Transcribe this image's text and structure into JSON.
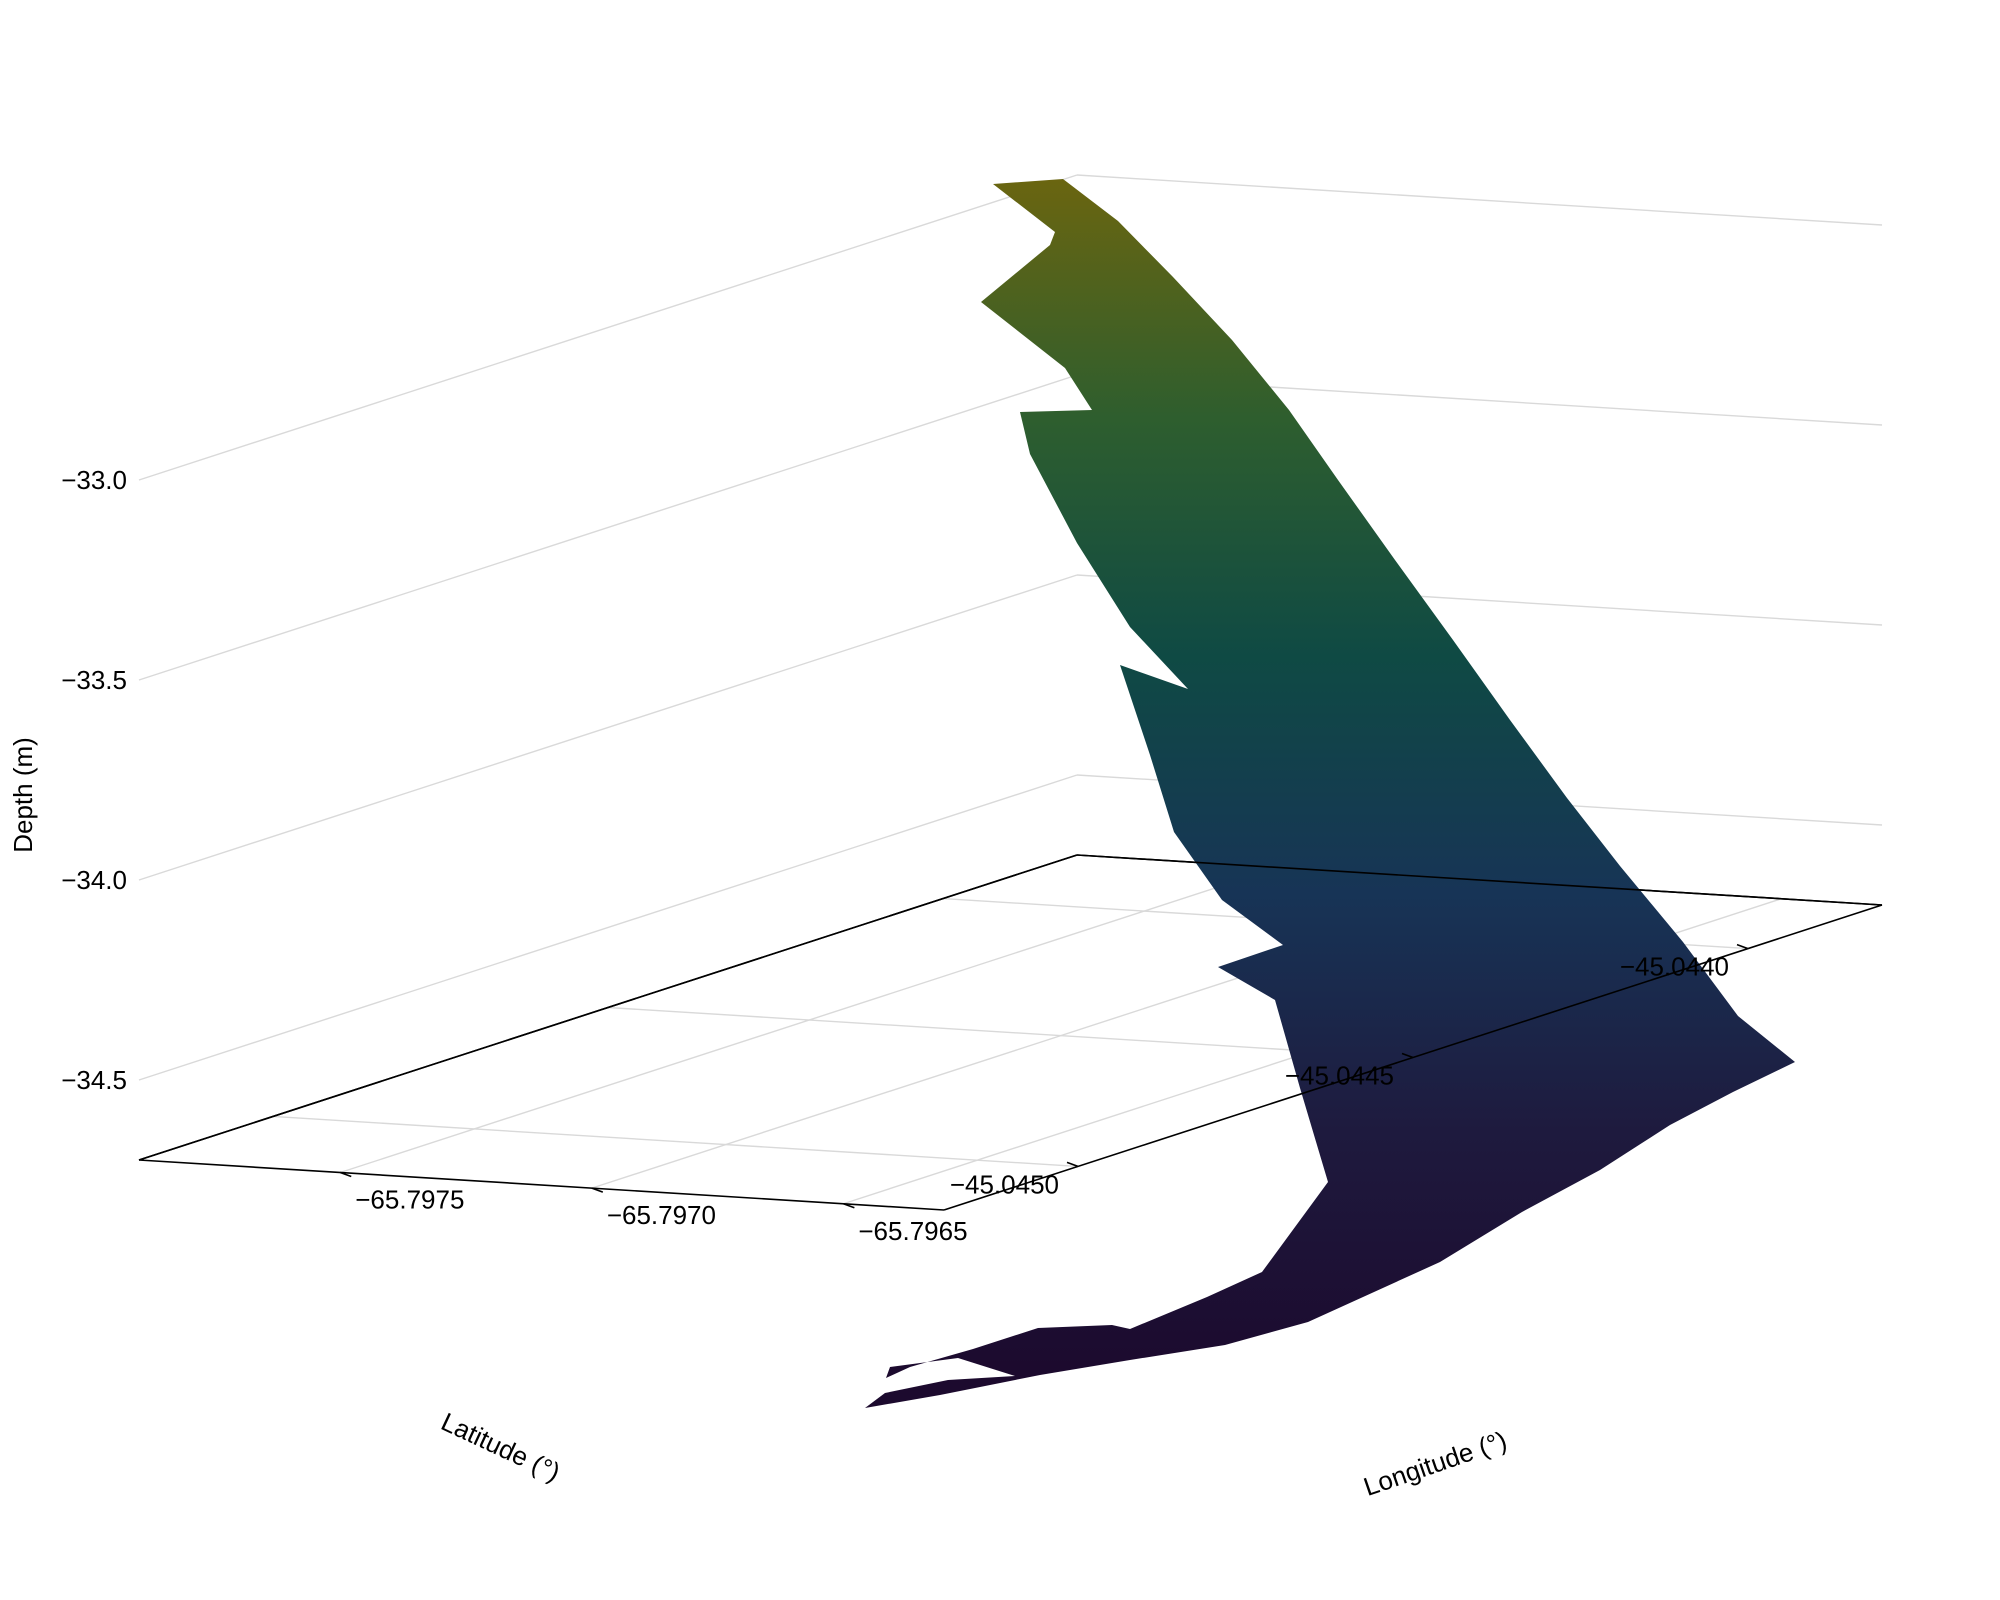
{
  "chart_data": {
    "type": "surface3d",
    "title": "",
    "xlabel": "Longitude (°)",
    "ylabel": "Latitude (°)",
    "zlabel": "Depth (m)",
    "x_ticks": [
      {
        "value": -65.7975,
        "label": "−65.7975"
      },
      {
        "value": -65.797,
        "label": "−65.7970"
      },
      {
        "value": -65.7965,
        "label": "−65.7965"
      }
    ],
    "y_ticks": [
      {
        "value": -45.045,
        "label": "−45.0450"
      },
      {
        "value": -45.0445,
        "label": "−45.0445"
      },
      {
        "value": -45.044,
        "label": "−45.0440"
      }
    ],
    "z_ticks": [
      {
        "value": -33.0,
        "label": "−33.0"
      },
      {
        "value": -33.5,
        "label": "−33.5"
      },
      {
        "value": -34.0,
        "label": "−34.0"
      },
      {
        "value": -34.5,
        "label": "−34.5"
      }
    ],
    "xlim": [
      -65.7979,
      -65.7963
    ],
    "ylim": [
      -45.0452,
      -45.0438
    ],
    "zlim": [
      -34.7,
      -32.8
    ],
    "surface_range": {
      "depth_min": -34.7,
      "depth_max": -32.8
    },
    "colormap": [
      "#1c0a2e",
      "#1e1a3e",
      "#173456",
      "#0f4a44",
      "#2e5e2e",
      "#6a6510"
    ],
    "grid": true,
    "legend": "none",
    "colors": {
      "axes": "#000000",
      "grid": "#d9d9d9",
      "background": "#ffffff"
    }
  }
}
